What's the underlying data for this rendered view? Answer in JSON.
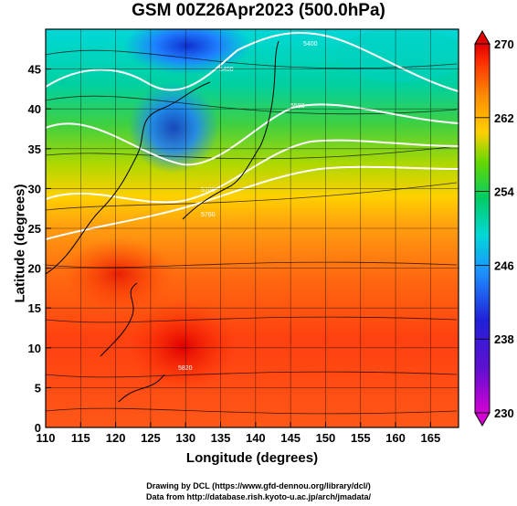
{
  "title": "GSM 00Z26Apr2023 (500.0hPa)",
  "axes": {
    "xlabel": "Longitude (degrees)",
    "ylabel": "Latitude  (degrees)",
    "xticks": [
      "110",
      "115",
      "120",
      "125",
      "130",
      "135",
      "140",
      "145",
      "150",
      "155",
      "160",
      "165"
    ],
    "yticks": [
      "0",
      "5",
      "10",
      "15",
      "20",
      "25",
      "30",
      "35",
      "40",
      "45"
    ],
    "xlim": [
      110,
      169
    ],
    "ylim": [
      0,
      50
    ]
  },
  "colorbar": {
    "labels": [
      "230",
      "238",
      "246",
      "254",
      "262",
      "270"
    ],
    "range": [
      230,
      270
    ],
    "colors": [
      "#d400d4",
      "#2020d8",
      "#1e90ff",
      "#00d8d8",
      "#00cc66",
      "#66d800",
      "#ffd000",
      "#ff8c00",
      "#ff3000",
      "#e00000"
    ]
  },
  "contours": {
    "labels": [
      "5400",
      "5400",
      "5580",
      "5700",
      "5760",
      "5820"
    ]
  },
  "credits": {
    "line1": "Drawing by DCL (https://www.gfd-dennou.org/library/dcl/)",
    "line2": "Data from http://database.rish.kyoto-u.ac.jp/arch/jmadata/"
  }
}
